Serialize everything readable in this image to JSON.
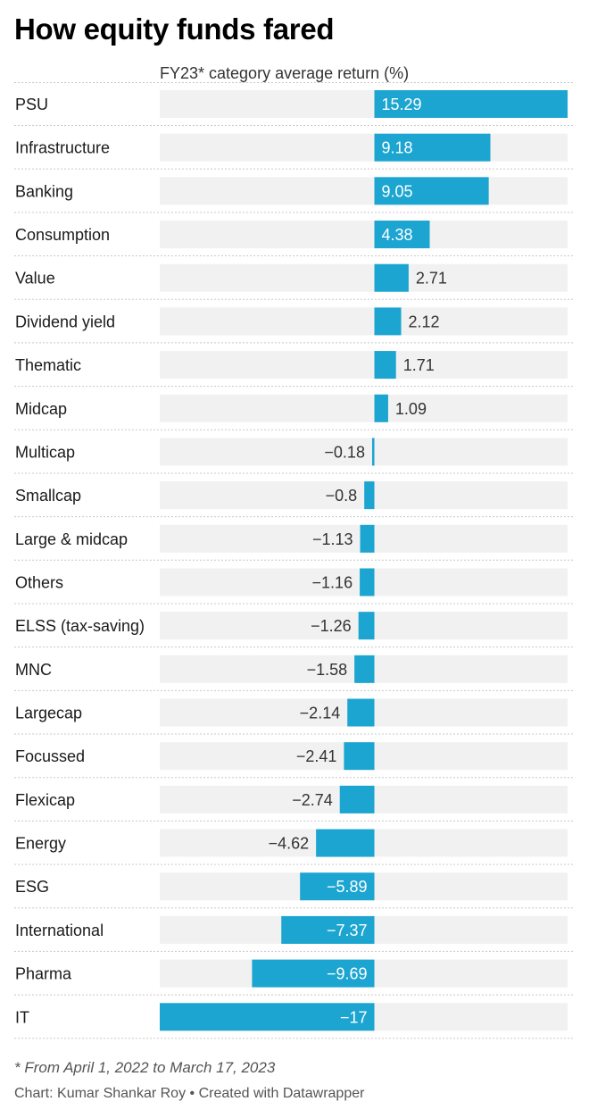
{
  "header": {
    "title": "How equity funds fared",
    "column_label": "FY23* category average return (%)"
  },
  "chart_data": {
    "type": "bar",
    "orientation": "horizontal",
    "categories": [
      "PSU",
      "Infrastructure",
      "Banking",
      "Consumption",
      "Value",
      "Dividend yield",
      "Thematic",
      "Midcap",
      "Multicap",
      "Smallcap",
      "Large & midcap",
      "Others",
      "ELSS (tax-saving)",
      "MNC",
      "Largecap",
      "Focussed",
      "Flexicap",
      "Energy",
      "ESG",
      "International",
      "Pharma",
      "IT"
    ],
    "values": [
      15.29,
      9.18,
      9.05,
      4.38,
      2.71,
      2.12,
      1.71,
      1.09,
      -0.18,
      -0.8,
      -1.13,
      -1.16,
      -1.26,
      -1.58,
      -2.14,
      -2.41,
      -2.74,
      -4.62,
      -5.89,
      -7.37,
      -9.69,
      -17
    ],
    "value_labels": [
      "15.29",
      "9.18",
      "9.05",
      "4.38",
      "2.71",
      "2.12",
      "1.71",
      "1.09",
      "−0.18",
      "−0.8",
      "−1.13",
      "−1.16",
      "−1.26",
      "−1.58",
      "−2.14",
      "−2.41",
      "−2.74",
      "−4.62",
      "−5.89",
      "−7.37",
      "−9.69",
      "−17"
    ],
    "xlim": [
      -17,
      15.29
    ],
    "title": "How equity funds fared",
    "xlabel": "FY23* category average return (%)",
    "ylabel": "",
    "grid": false,
    "colors": {
      "bar": "#1ba5d0",
      "track": "#f1f1f1",
      "separator": "#c8c8c8",
      "label_inside": "#ffffff",
      "label_outside": "#333333"
    }
  },
  "footer": {
    "note": "* From April 1, 2022 to March 17, 2023",
    "credit": "Chart: Kumar Shankar Roy • Created with Datawrapper"
  }
}
